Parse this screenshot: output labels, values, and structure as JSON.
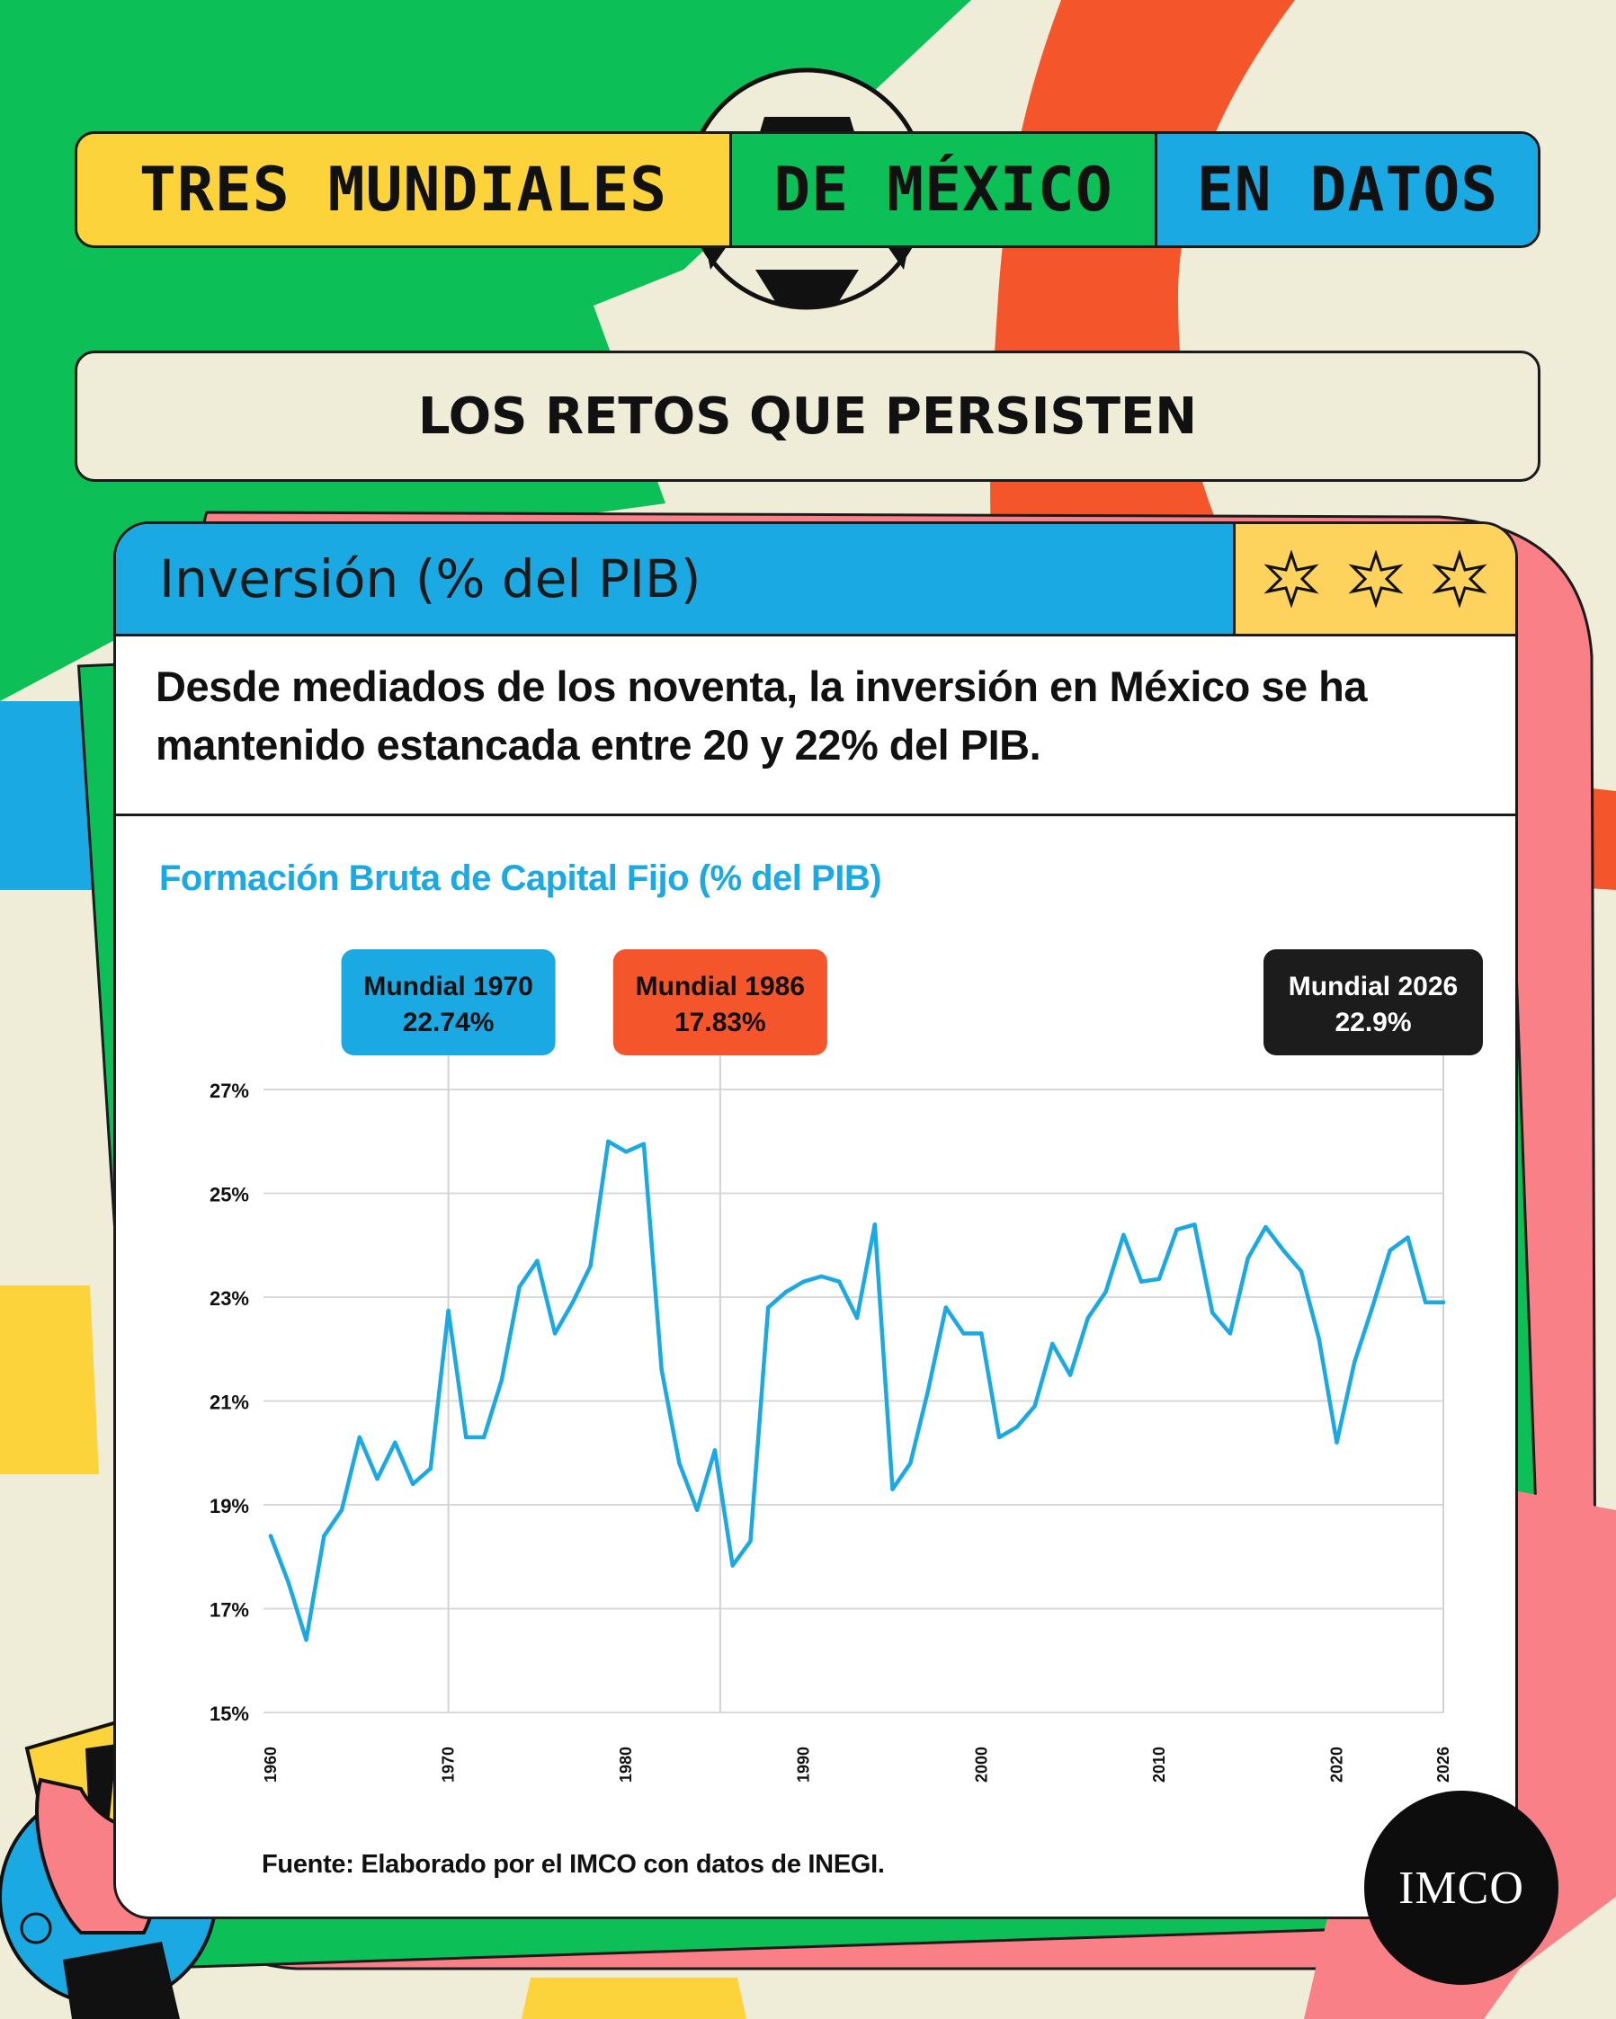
{
  "header": {
    "title_parts": [
      "TRES MUNDIALES",
      "DE MÉXICO",
      "EN DATOS"
    ]
  },
  "section": {
    "subtitle": "LOS RETOS QUE PERSISTEN"
  },
  "card": {
    "title": "Inversión (% del PIB)",
    "lead": "Desde mediados de los noventa, la inversión en México se ha mantenido estancada entre 20 y 22% del PIB.",
    "source": "Fuente: Elaborado por el IMCO con datos de INEGI.",
    "logo_text": "IMCO"
  },
  "colors": {
    "blue": "#1aa9e2",
    "orange": "#f4552a",
    "black": "#1c1c1c",
    "yellow": "#fdd33b",
    "green": "#0dbf57",
    "pink": "#f98087"
  },
  "chart_data": {
    "type": "line",
    "title": "Formación Bruta de Capital Fijo (% del PIB)",
    "xlabel": "",
    "ylabel": "",
    "ylim": [
      15,
      27
    ],
    "yticks": [
      15,
      17,
      19,
      21,
      23,
      25,
      27
    ],
    "ytick_labels": [
      "15%",
      "17%",
      "19%",
      "21%",
      "23%",
      "25%",
      "27%"
    ],
    "xlim": [
      1960,
      2026
    ],
    "xticks": [
      1960,
      1970,
      1980,
      1990,
      2000,
      2010,
      2020,
      2026
    ],
    "xtick_labels": [
      "1960",
      "1970",
      "1980",
      "1990",
      "2000",
      "2010",
      "2020",
      "2026"
    ],
    "grid": true,
    "series": [
      {
        "x": [
          1960,
          1961,
          1962,
          1963,
          1964,
          1965,
          1966,
          1967,
          1968,
          1969,
          1970,
          1971,
          1972,
          1973,
          1974,
          1975,
          1976,
          1977,
          1978,
          1979,
          1980,
          1981,
          1982,
          1983,
          1984,
          1985,
          1986,
          1987,
          1988,
          1989,
          1990,
          1991,
          1992,
          1993,
          1994,
          1995,
          1996,
          1997,
          1998,
          1999,
          2000,
          2001,
          2002,
          2003,
          2004,
          2005,
          2006,
          2007,
          2008,
          2009,
          2010,
          2011,
          2012,
          2013,
          2014,
          2015,
          2016,
          2017,
          2018,
          2019,
          2020,
          2021,
          2022,
          2023,
          2024,
          2025,
          2026
        ],
        "y": [
          18.4,
          17.5,
          16.4,
          18.4,
          18.9,
          20.3,
          19.5,
          20.2,
          19.4,
          19.7,
          22.74,
          20.3,
          20.3,
          21.4,
          23.2,
          23.7,
          22.3,
          22.9,
          23.6,
          26.0,
          25.8,
          25.95,
          21.6,
          19.8,
          18.9,
          20.05,
          17.83,
          18.3,
          22.8,
          23.1,
          23.3,
          23.4,
          23.3,
          22.6,
          24.4,
          19.3,
          19.8,
          21.2,
          22.8,
          22.3,
          22.3,
          20.3,
          20.5,
          20.9,
          22.1,
          21.5,
          22.6,
          23.1,
          24.2,
          23.3,
          23.35,
          24.3,
          24.4,
          22.7,
          22.3,
          23.75,
          24.35,
          23.9,
          23.5,
          22.2,
          20.2,
          21.75,
          22.8,
          23.9,
          24.15,
          22.9,
          22.9
        ]
      }
    ],
    "annotations": [
      {
        "label": "Mundial 1970",
        "value": "22.74%",
        "x": 1970,
        "color": "#1aa9e2",
        "text_color": "#111111"
      },
      {
        "label": "Mundial 1986",
        "value": "17.83%",
        "x": 1985.3,
        "color": "#f4552a",
        "text_color": "#111111"
      },
      {
        "label": "Mundial 2026",
        "value": "22.9%",
        "x": 2026,
        "color": "#1c1c1c",
        "text_color": "#ffffff"
      }
    ]
  }
}
